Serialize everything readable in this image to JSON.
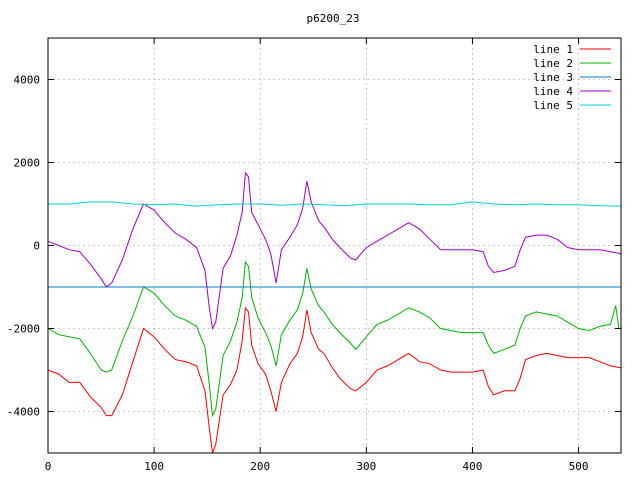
{
  "chart_data": {
    "type": "line",
    "title": "p6200_23",
    "xlabel": "",
    "ylabel": "",
    "xlim": [
      0,
      540
    ],
    "ylim": [
      -5000,
      5000
    ],
    "x_ticks": [
      0,
      100,
      200,
      300,
      400,
      500
    ],
    "y_ticks": [
      -4000,
      -2000,
      0,
      2000,
      4000
    ],
    "grid": true,
    "legend_position": "top-right",
    "series": [
      {
        "name": "line 1",
        "color": "#ff0000",
        "points": [
          [
            0,
            -3000
          ],
          [
            10,
            -3100
          ],
          [
            20,
            -3300
          ],
          [
            30,
            -3300
          ],
          [
            40,
            -3650
          ],
          [
            50,
            -3900
          ],
          [
            55,
            -4100
          ],
          [
            60,
            -4100
          ],
          [
            70,
            -3600
          ],
          [
            80,
            -2800
          ],
          [
            90,
            -2000
          ],
          [
            100,
            -2200
          ],
          [
            110,
            -2500
          ],
          [
            120,
            -2750
          ],
          [
            130,
            -2800
          ],
          [
            140,
            -2900
          ],
          [
            148,
            -3500
          ],
          [
            152,
            -4400
          ],
          [
            155,
            -5000
          ],
          [
            158,
            -4800
          ],
          [
            165,
            -3600
          ],
          [
            172,
            -3350
          ],
          [
            178,
            -3000
          ],
          [
            183,
            -2300
          ],
          [
            186,
            -1500
          ],
          [
            189,
            -1600
          ],
          [
            192,
            -2400
          ],
          [
            198,
            -2850
          ],
          [
            205,
            -3100
          ],
          [
            210,
            -3500
          ],
          [
            215,
            -4000
          ],
          [
            220,
            -3300
          ],
          [
            228,
            -2850
          ],
          [
            235,
            -2600
          ],
          [
            240,
            -2200
          ],
          [
            244,
            -1550
          ],
          [
            248,
            -2100
          ],
          [
            255,
            -2500
          ],
          [
            260,
            -2600
          ],
          [
            268,
            -2950
          ],
          [
            275,
            -3200
          ],
          [
            285,
            -3450
          ],
          [
            290,
            -3500
          ],
          [
            300,
            -3300
          ],
          [
            310,
            -3000
          ],
          [
            320,
            -2900
          ],
          [
            330,
            -2750
          ],
          [
            340,
            -2600
          ],
          [
            350,
            -2800
          ],
          [
            360,
            -2850
          ],
          [
            370,
            -3000
          ],
          [
            380,
            -3050
          ],
          [
            390,
            -3050
          ],
          [
            400,
            -3050
          ],
          [
            410,
            -3000
          ],
          [
            415,
            -3400
          ],
          [
            420,
            -3600
          ],
          [
            430,
            -3500
          ],
          [
            440,
            -3500
          ],
          [
            445,
            -3200
          ],
          [
            450,
            -2750
          ],
          [
            460,
            -2650
          ],
          [
            470,
            -2600
          ],
          [
            480,
            -2650
          ],
          [
            490,
            -2700
          ],
          [
            500,
            -2700
          ],
          [
            510,
            -2700
          ],
          [
            520,
            -2800
          ],
          [
            530,
            -2900
          ],
          [
            540,
            -2950
          ]
        ]
      },
      {
        "name": "line 2",
        "color": "#00b000",
        "points": [
          [
            0,
            -2000
          ],
          [
            10,
            -2150
          ],
          [
            20,
            -2200
          ],
          [
            30,
            -2250
          ],
          [
            40,
            -2600
          ],
          [
            50,
            -3000
          ],
          [
            55,
            -3050
          ],
          [
            60,
            -3000
          ],
          [
            70,
            -2300
          ],
          [
            80,
            -1700
          ],
          [
            90,
            -1000
          ],
          [
            100,
            -1150
          ],
          [
            110,
            -1450
          ],
          [
            120,
            -1700
          ],
          [
            130,
            -1800
          ],
          [
            140,
            -1950
          ],
          [
            148,
            -2450
          ],
          [
            152,
            -3350
          ],
          [
            155,
            -4100
          ],
          [
            158,
            -3950
          ],
          [
            165,
            -2650
          ],
          [
            172,
            -2300
          ],
          [
            178,
            -1850
          ],
          [
            183,
            -1250
          ],
          [
            186,
            -400
          ],
          [
            189,
            -500
          ],
          [
            192,
            -1250
          ],
          [
            198,
            -1750
          ],
          [
            205,
            -2100
          ],
          [
            210,
            -2400
          ],
          [
            215,
            -2900
          ],
          [
            220,
            -2150
          ],
          [
            228,
            -1800
          ],
          [
            235,
            -1550
          ],
          [
            240,
            -1150
          ],
          [
            244,
            -550
          ],
          [
            248,
            -1050
          ],
          [
            255,
            -1450
          ],
          [
            260,
            -1600
          ],
          [
            268,
            -1900
          ],
          [
            275,
            -2100
          ],
          [
            285,
            -2350
          ],
          [
            290,
            -2500
          ],
          [
            300,
            -2200
          ],
          [
            310,
            -1900
          ],
          [
            320,
            -1800
          ],
          [
            330,
            -1650
          ],
          [
            340,
            -1500
          ],
          [
            350,
            -1600
          ],
          [
            360,
            -1750
          ],
          [
            370,
            -2000
          ],
          [
            380,
            -2050
          ],
          [
            390,
            -2100
          ],
          [
            400,
            -2100
          ],
          [
            410,
            -2100
          ],
          [
            415,
            -2400
          ],
          [
            420,
            -2600
          ],
          [
            430,
            -2500
          ],
          [
            440,
            -2400
          ],
          [
            445,
            -2000
          ],
          [
            450,
            -1700
          ],
          [
            460,
            -1600
          ],
          [
            470,
            -1650
          ],
          [
            480,
            -1700
          ],
          [
            490,
            -1850
          ],
          [
            500,
            -2000
          ],
          [
            510,
            -2050
          ],
          [
            520,
            -1950
          ],
          [
            530,
            -1900
          ],
          [
            535,
            -1450
          ],
          [
            538,
            -2000
          ],
          [
            540,
            -2000
          ]
        ]
      },
      {
        "name": "line 3",
        "color": "#0080c0",
        "points": [
          [
            0,
            -1000
          ],
          [
            540,
            -1000
          ]
        ]
      },
      {
        "name": "line 4",
        "color": "#a000c0",
        "points": [
          [
            0,
            100
          ],
          [
            10,
            0
          ],
          [
            20,
            -100
          ],
          [
            30,
            -150
          ],
          [
            40,
            -450
          ],
          [
            50,
            -800
          ],
          [
            55,
            -1000
          ],
          [
            60,
            -900
          ],
          [
            70,
            -350
          ],
          [
            80,
            400
          ],
          [
            90,
            1000
          ],
          [
            100,
            850
          ],
          [
            110,
            550
          ],
          [
            120,
            300
          ],
          [
            130,
            150
          ],
          [
            140,
            -50
          ],
          [
            148,
            -600
          ],
          [
            152,
            -1500
          ],
          [
            155,
            -2000
          ],
          [
            158,
            -1850
          ],
          [
            165,
            -550
          ],
          [
            172,
            -250
          ],
          [
            178,
            250
          ],
          [
            183,
            800
          ],
          [
            186,
            1750
          ],
          [
            189,
            1650
          ],
          [
            192,
            800
          ],
          [
            198,
            500
          ],
          [
            205,
            150
          ],
          [
            210,
            -200
          ],
          [
            215,
            -900
          ],
          [
            220,
            -100
          ],
          [
            228,
            200
          ],
          [
            235,
            500
          ],
          [
            240,
            900
          ],
          [
            244,
            1550
          ],
          [
            248,
            1050
          ],
          [
            255,
            600
          ],
          [
            260,
            450
          ],
          [
            268,
            150
          ],
          [
            275,
            -50
          ],
          [
            285,
            -300
          ],
          [
            290,
            -350
          ],
          [
            300,
            -50
          ],
          [
            310,
            100
          ],
          [
            320,
            250
          ],
          [
            330,
            400
          ],
          [
            340,
            550
          ],
          [
            350,
            400
          ],
          [
            360,
            150
          ],
          [
            370,
            -100
          ],
          [
            380,
            -100
          ],
          [
            390,
            -100
          ],
          [
            400,
            -100
          ],
          [
            410,
            -150
          ],
          [
            415,
            -500
          ],
          [
            420,
            -650
          ],
          [
            430,
            -600
          ],
          [
            440,
            -500
          ],
          [
            445,
            -100
          ],
          [
            450,
            200
          ],
          [
            460,
            250
          ],
          [
            470,
            250
          ],
          [
            480,
            150
          ],
          [
            490,
            -50
          ],
          [
            500,
            -100
          ],
          [
            510,
            -100
          ],
          [
            520,
            -100
          ],
          [
            530,
            -150
          ],
          [
            540,
            -200
          ]
        ]
      },
      {
        "name": "line 5",
        "color": "#00d0d0",
        "points": [
          [
            0,
            1000
          ],
          [
            20,
            1000
          ],
          [
            40,
            1050
          ],
          [
            60,
            1050
          ],
          [
            80,
            1000
          ],
          [
            100,
            980
          ],
          [
            120,
            1000
          ],
          [
            140,
            950
          ],
          [
            160,
            980
          ],
          [
            180,
            1000
          ],
          [
            200,
            1000
          ],
          [
            220,
            970
          ],
          [
            240,
            1000
          ],
          [
            260,
            980
          ],
          [
            280,
            960
          ],
          [
            300,
            1000
          ],
          [
            320,
            1000
          ],
          [
            340,
            1000
          ],
          [
            360,
            980
          ],
          [
            380,
            980
          ],
          [
            400,
            1050
          ],
          [
            420,
            1000
          ],
          [
            440,
            980
          ],
          [
            460,
            1000
          ],
          [
            480,
            980
          ],
          [
            500,
            980
          ],
          [
            520,
            960
          ],
          [
            540,
            950
          ]
        ]
      }
    ]
  }
}
